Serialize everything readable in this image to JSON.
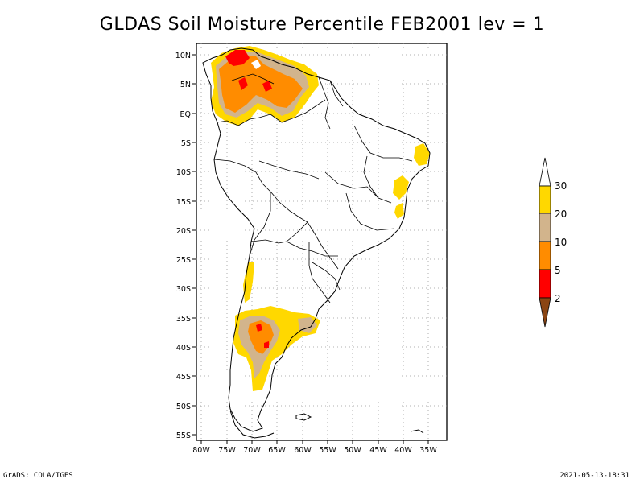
{
  "title": "GLDAS Soil Moisture Percentile FEB2001 lev = 1",
  "axes": {
    "lat_ticks": [
      "10N",
      "5N",
      "EQ",
      "5S",
      "10S",
      "15S",
      "20S",
      "25S",
      "30S",
      "35S",
      "40S",
      "45S",
      "50S",
      "55S"
    ],
    "lon_ticks": [
      "80W",
      "75W",
      "70W",
      "65W",
      "60W",
      "55W",
      "50W",
      "45W",
      "40W",
      "35W"
    ]
  },
  "legend": {
    "labels": [
      "30",
      "20",
      "10",
      "5",
      "2"
    ],
    "colors": {
      "above30": "#ffffff",
      "20-30": "#ffd800",
      "10-20": "#d2b48c",
      "5-10": "#ff8c00",
      "2-5": "#ff0000",
      "below2": "#8b4513"
    }
  },
  "footer": {
    "left": "GrADS: COLA/IGES",
    "right": "2021-05-13-18:31"
  }
}
